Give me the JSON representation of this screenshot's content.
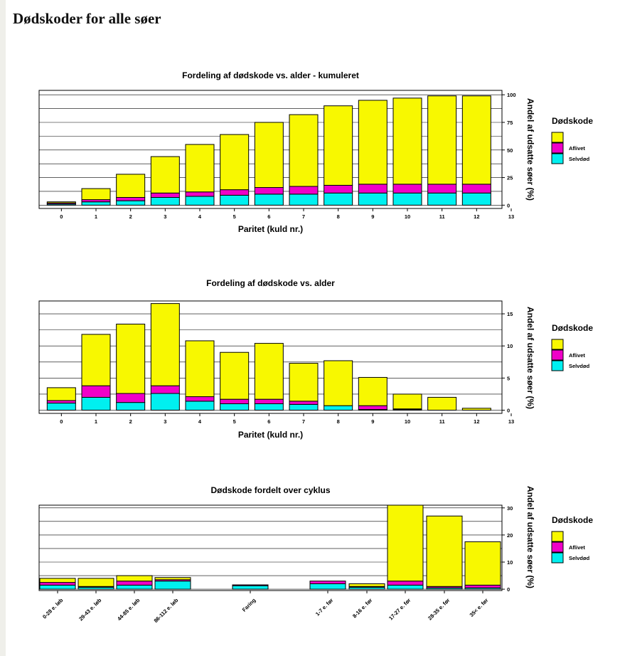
{
  "page": {
    "title": "Dødskoder for alle søer"
  },
  "colors": {
    "Selvdød": "#00f0f0",
    "Aflivet": "#f000c8",
    "rest": "#f8f800"
  },
  "chart_data": [
    {
      "type": "bar",
      "title": "Fordeling af dødskode vs. alder - kumuleret",
      "xlabel": "Paritet (kuld nr.)",
      "ylabel": "Andel af udsatte søer (%)",
      "legend_title": "Dødskode",
      "legend": [
        "Aflivet",
        "Selvdød"
      ],
      "legend_position": "right",
      "stacked": true,
      "grid": true,
      "ylim": [
        -3,
        104
      ],
      "yticks": [
        0,
        25,
        50,
        75,
        100
      ],
      "xlim": [
        -0.5,
        13
      ],
      "xticks": [
        0,
        1,
        2,
        3,
        4,
        5,
        6,
        7,
        8,
        9,
        10,
        11,
        12,
        13
      ],
      "categories": [
        "0",
        "1",
        "2",
        "3",
        "4",
        "5",
        "6",
        "7",
        "8",
        "9",
        "10",
        "11",
        "12"
      ],
      "series": [
        {
          "name": "Selvdød",
          "values": [
            1,
            3,
            4,
            7,
            8,
            9,
            10,
            10,
            11,
            11,
            11,
            11,
            11
          ]
        },
        {
          "name": "Aflivet",
          "values": [
            1,
            2,
            3,
            4,
            4,
            5,
            6,
            7,
            7,
            8,
            8,
            8,
            8
          ]
        },
        {
          "name": "",
          "values": [
            1,
            10,
            21,
            33,
            43,
            50,
            59,
            65,
            72,
            76,
            78,
            80,
            80
          ]
        }
      ]
    },
    {
      "type": "bar",
      "title": "Fordeling af dødskode vs. alder",
      "xlabel": "Paritet (kuld nr.)",
      "ylabel": "Andel af udsatte søer (%)",
      "legend_title": "Dødskode",
      "legend": [
        "Aflivet",
        "Selvdød"
      ],
      "legend_position": "right",
      "stacked": true,
      "grid": true,
      "ylim": [
        -0.5,
        17
      ],
      "yticks": [
        0,
        5,
        10,
        15
      ],
      "xlim": [
        -0.5,
        13
      ],
      "xticks": [
        0,
        1,
        2,
        3,
        4,
        5,
        6,
        7,
        8,
        9,
        10,
        11,
        12,
        13
      ],
      "categories": [
        "0",
        "1",
        "2",
        "3",
        "4",
        "5",
        "6",
        "7",
        "8",
        "9",
        "10",
        "11",
        "12"
      ],
      "series": [
        {
          "name": "Selvdød",
          "values": [
            1.1,
            2.0,
            1.2,
            2.6,
            1.4,
            1.0,
            1.0,
            0.9,
            0.7,
            0.1,
            0.1,
            0,
            0
          ]
        },
        {
          "name": "Aflivet",
          "values": [
            0.4,
            1.8,
            1.4,
            1.2,
            0.7,
            0.7,
            0.7,
            0.5,
            0,
            0.6,
            0.1,
            0,
            0
          ]
        },
        {
          "name": "",
          "values": [
            2.0,
            8.0,
            10.8,
            12.8,
            8.7,
            7.3,
            8.7,
            5.9,
            7.0,
            4.4,
            2.3,
            2.0,
            0.3
          ]
        }
      ]
    },
    {
      "type": "bar",
      "title": "Dødskode fordelt over cyklus",
      "xlabel": "",
      "ylabel": "Andel af udsatte søer (%)",
      "legend_title": "Dødskode",
      "legend": [
        "Aflivet",
        "Selvdød"
      ],
      "legend_position": "right",
      "stacked": true,
      "grid": true,
      "ylim": [
        -0.5,
        31
      ],
      "yticks": [
        0,
        10,
        20,
        30
      ],
      "categories": [
        "0-28 e. løb",
        "29-43 e. løb",
        "44-85 e. løb",
        "86-112 e. løb",
        "",
        "Faring",
        "",
        "1-7 e. før",
        "8-16 e. før",
        "17-27 e. før",
        "28-35 e. før",
        "35< e. før"
      ],
      "series": [
        {
          "name": "Selvdød",
          "values": [
            1.5,
            0.7,
            1.5,
            3.0,
            0,
            1.3,
            0,
            2.0,
            0.7,
            1.5,
            0.5,
            0.5
          ]
        },
        {
          "name": "Aflivet",
          "values": [
            1.0,
            0.3,
            1.5,
            0.5,
            0,
            0.3,
            0,
            1.0,
            0.3,
            1.5,
            0.5,
            1.0
          ]
        },
        {
          "name": "",
          "values": [
            1.5,
            3.0,
            2.0,
            0.8,
            0,
            0,
            0,
            0,
            1.0,
            28.0,
            26.0,
            16.0
          ]
        }
      ]
    }
  ]
}
